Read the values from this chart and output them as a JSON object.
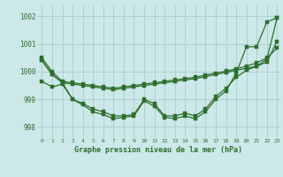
{
  "title": "Graphe pression niveau de la mer (hPa)",
  "background_color": "#cce8e8",
  "grid_color": "#aacccc",
  "line_color": "#2d6e2d",
  "xlim": [
    -0.5,
    23.3
  ],
  "ylim": [
    997.6,
    1002.4
  ],
  "yticks": [
    998,
    999,
    1000,
    1001,
    1002
  ],
  "xticks": [
    0,
    1,
    2,
    3,
    4,
    5,
    6,
    7,
    8,
    9,
    10,
    11,
    12,
    13,
    14,
    15,
    16,
    17,
    18,
    19,
    20,
    21,
    22,
    23
  ],
  "line1": [
    1000.5,
    1000.0,
    999.65,
    999.6,
    999.55,
    999.5,
    999.45,
    999.4,
    999.45,
    999.5,
    999.55,
    999.6,
    999.65,
    999.7,
    999.75,
    999.8,
    999.88,
    999.95,
    1000.02,
    1000.1,
    1000.2,
    1000.32,
    1000.5,
    1000.85
  ],
  "line2": [
    999.65,
    999.45,
    999.55,
    999.0,
    998.85,
    998.65,
    998.55,
    998.4,
    998.4,
    998.45,
    999.0,
    998.85,
    998.4,
    998.4,
    998.5,
    998.4,
    998.65,
    999.1,
    999.4,
    999.8,
    1000.05,
    1000.2,
    1000.45,
    1001.95
  ],
  "line3": [
    1000.4,
    999.9,
    999.6,
    999.55,
    999.5,
    999.45,
    999.4,
    999.35,
    999.4,
    999.45,
    999.5,
    999.55,
    999.6,
    999.65,
    999.7,
    999.75,
    999.82,
    999.9,
    999.97,
    1000.05,
    1000.12,
    1000.2,
    1000.35,
    1001.1
  ],
  "line4": [
    1000.4,
    999.9,
    999.6,
    999.0,
    998.8,
    998.55,
    998.45,
    998.3,
    998.35,
    998.4,
    998.95,
    998.75,
    998.35,
    998.3,
    998.4,
    998.3,
    998.55,
    999.0,
    999.3,
    999.95,
    1000.9,
    1000.9,
    1001.8,
    1001.95
  ]
}
